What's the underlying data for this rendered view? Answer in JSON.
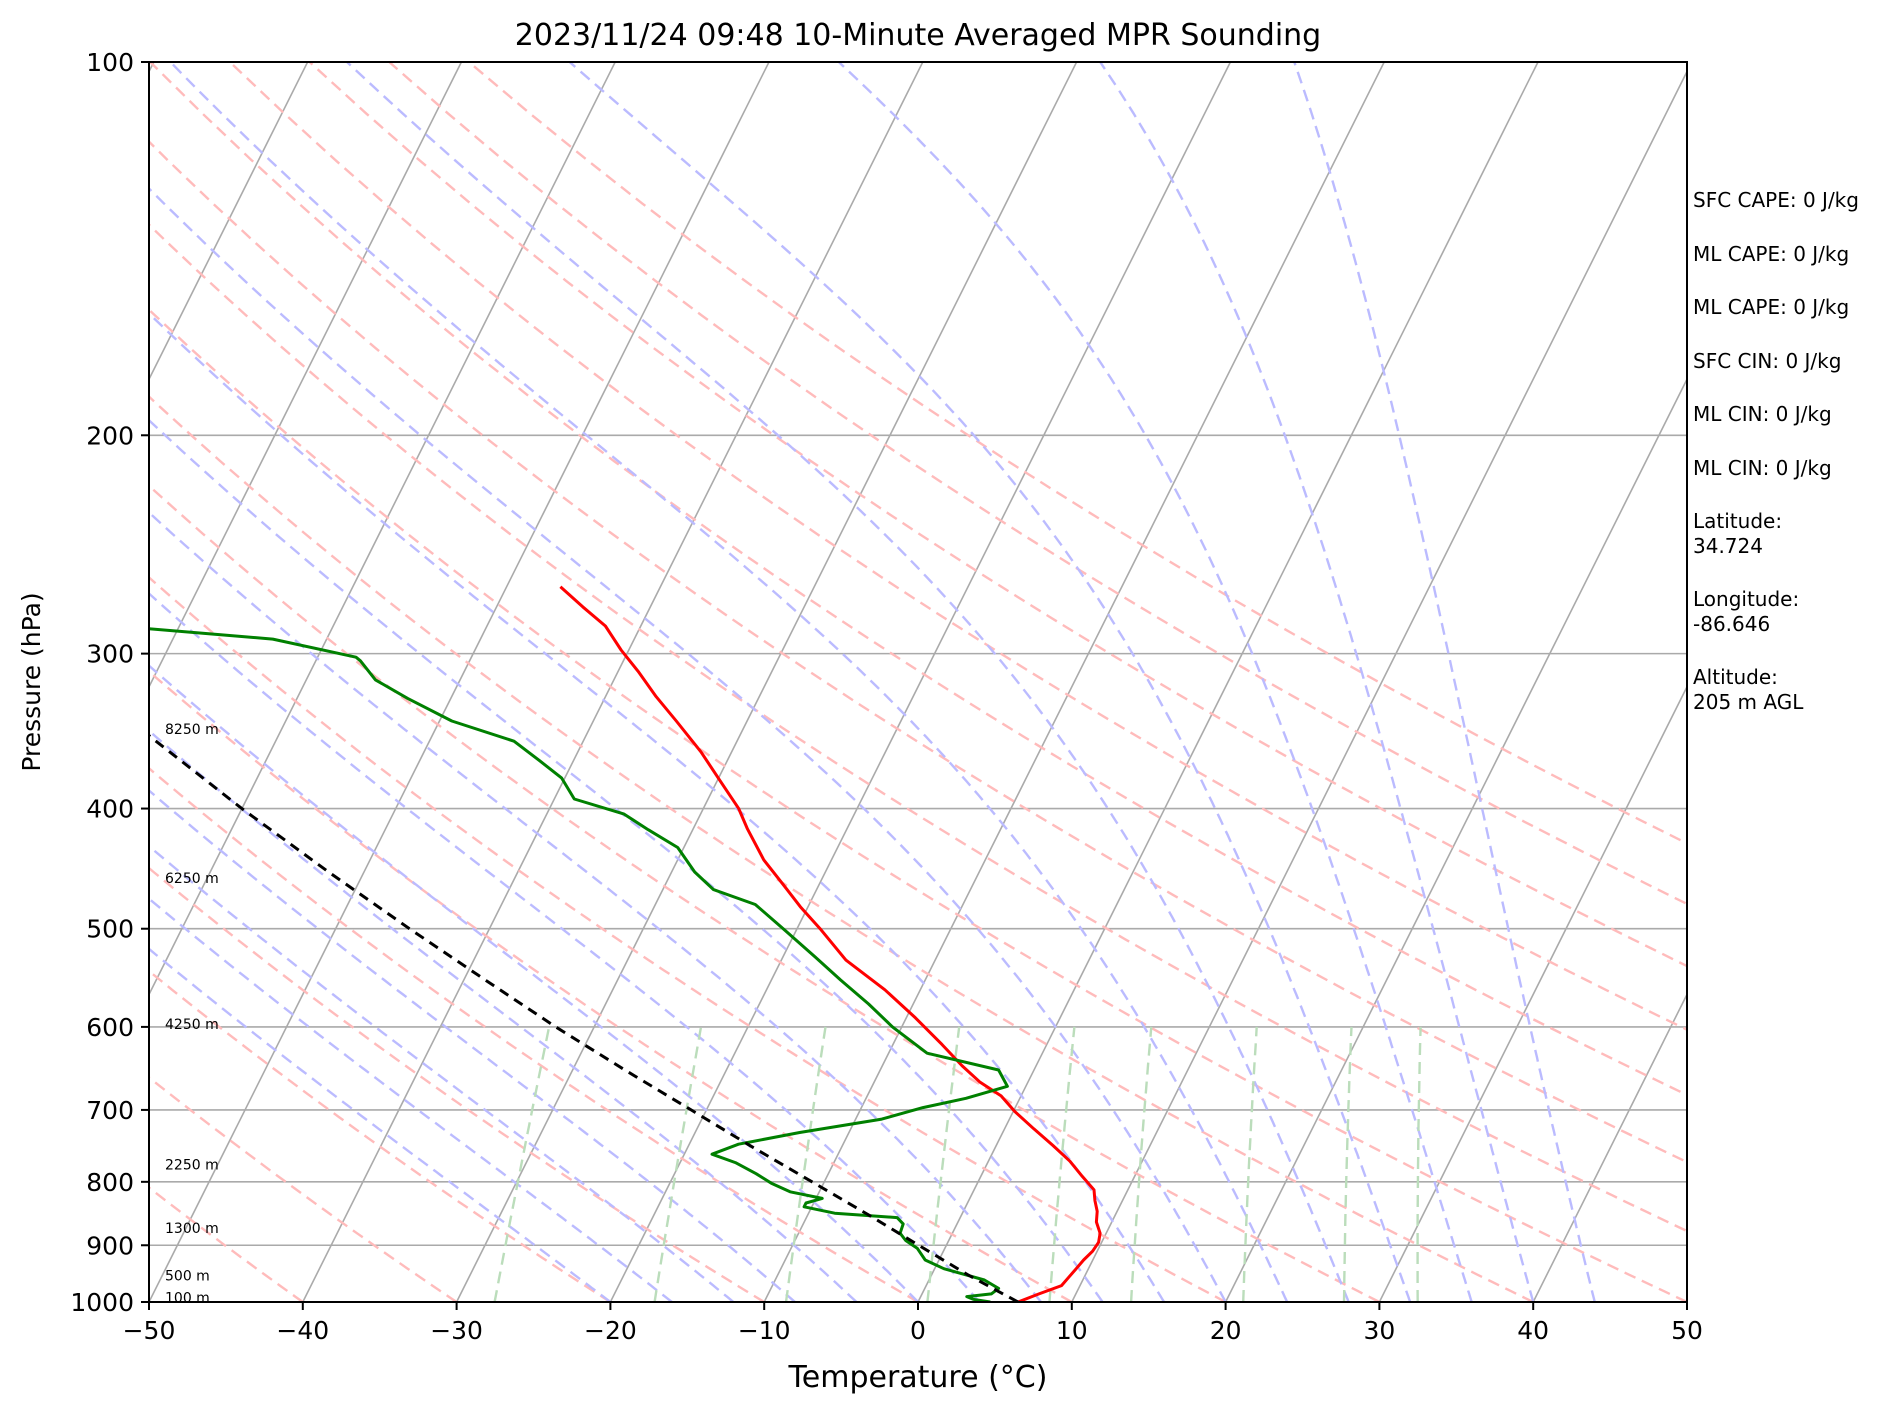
{
  "chart_data": {
    "type": "skew-t log-p diagram",
    "title": "2023/11/24 09:48 10-Minute Averaged MPR Sounding",
    "xlabel": "Temperature (°C)",
    "ylabel": "Pressure (hPa)",
    "xlim": [
      -50,
      50
    ],
    "ylim": [
      1000,
      100
    ],
    "y_scale": "log",
    "x_ticks": [
      -50,
      -40,
      -30,
      -20,
      -10,
      0,
      10,
      20,
      30,
      40,
      50
    ],
    "x_tick_labels": [
      "−50",
      "−40",
      "−30",
      "−20",
      "−10",
      "0",
      "10",
      "20",
      "30",
      "40",
      "50"
    ],
    "y_ticks": [
      100,
      200,
      300,
      400,
      500,
      600,
      700,
      800,
      900,
      1000
    ],
    "y_tick_labels": [
      "100",
      "200",
      "300",
      "400",
      "500",
      "600",
      "700",
      "800",
      "900",
      "1000"
    ],
    "isobar_grid": true,
    "skewed_isotherms": true,
    "dry_adiabats": true,
    "moist_adiabats": true,
    "mixing_ratio_lines": true,
    "height_labels": [
      {
        "pressure": 345,
        "label": "8250 m"
      },
      {
        "pressure": 455,
        "label": "6250 m"
      },
      {
        "pressure": 597,
        "label": "4250 m"
      },
      {
        "pressure": 775,
        "label": "2250 m"
      },
      {
        "pressure": 872,
        "label": "1300 m"
      },
      {
        "pressure": 952,
        "label": "500 m"
      },
      {
        "pressure": 992,
        "label": "100 m"
      }
    ],
    "series": [
      {
        "name": "temperature",
        "color": "#ff0000",
        "points": [
          {
            "p": 1000,
            "t": 6.5
          },
          {
            "p": 985,
            "t": 7.6
          },
          {
            "p": 970,
            "t": 8.8
          },
          {
            "p": 955,
            "t": 9.0
          },
          {
            "p": 940,
            "t": 9.2
          },
          {
            "p": 925,
            "t": 9.4
          },
          {
            "p": 910,
            "t": 9.7
          },
          {
            "p": 895,
            "t": 9.8
          },
          {
            "p": 880,
            "t": 9.6
          },
          {
            "p": 862,
            "t": 9.0
          },
          {
            "p": 845,
            "t": 8.7
          },
          {
            "p": 828,
            "t": 8.2
          },
          {
            "p": 812,
            "t": 7.8
          },
          {
            "p": 792,
            "t": 6.6
          },
          {
            "p": 770,
            "t": 5.3
          },
          {
            "p": 748,
            "t": 3.7
          },
          {
            "p": 725,
            "t": 1.9
          },
          {
            "p": 702,
            "t": 0.1
          },
          {
            "p": 682,
            "t": -1.3
          },
          {
            "p": 665,
            "t": -3.1
          },
          {
            "p": 645,
            "t": -4.8
          },
          {
            "p": 620,
            "t": -6.8
          },
          {
            "p": 590,
            "t": -9.4
          },
          {
            "p": 560,
            "t": -12.3
          },
          {
            "p": 530,
            "t": -15.8
          },
          {
            "p": 500,
            "t": -18.5
          },
          {
            "p": 480,
            "t": -20.5
          },
          {
            "p": 460,
            "t": -22.4
          },
          {
            "p": 440,
            "t": -24.4
          },
          {
            "p": 415,
            "t": -26.5
          },
          {
            "p": 400,
            "t": -27.7
          },
          {
            "p": 380,
            "t": -29.8
          },
          {
            "p": 360,
            "t": -32.0
          },
          {
            "p": 340,
            "t": -34.6
          },
          {
            "p": 325,
            "t": -36.7
          },
          {
            "p": 310,
            "t": -38.7
          },
          {
            "p": 298,
            "t": -40.5
          },
          {
            "p": 285,
            "t": -42.3
          },
          {
            "p": 275,
            "t": -44.4
          },
          {
            "p": 265,
            "t": -46.5
          }
        ]
      },
      {
        "name": "dewpoint",
        "color": "#008000",
        "points": [
          {
            "p": 1000,
            "t": 4.7
          },
          {
            "p": 995,
            "t": 3.5
          },
          {
            "p": 990,
            "t": 3.0
          },
          {
            "p": 985,
            "t": 4.5
          },
          {
            "p": 975,
            "t": 4.8
          },
          {
            "p": 960,
            "t": 3.6
          },
          {
            "p": 940,
            "t": 0.6
          },
          {
            "p": 925,
            "t": -0.9
          },
          {
            "p": 905,
            "t": -1.8
          },
          {
            "p": 892,
            "t": -2.8
          },
          {
            "p": 880,
            "t": -3.4
          },
          {
            "p": 865,
            "t": -3.5
          },
          {
            "p": 855,
            "t": -4.1
          },
          {
            "p": 848,
            "t": -8.3
          },
          {
            "p": 838,
            "t": -10.5
          },
          {
            "p": 832,
            "t": -10.5
          },
          {
            "p": 825,
            "t": -9.6
          },
          {
            "p": 815,
            "t": -11.9
          },
          {
            "p": 802,
            "t": -13.4
          },
          {
            "p": 788,
            "t": -14.7
          },
          {
            "p": 772,
            "t": -16.4
          },
          {
            "p": 760,
            "t": -18.2
          },
          {
            "p": 746,
            "t": -16.8
          },
          {
            "p": 730,
            "t": -13.2
          },
          {
            "p": 712,
            "t": -8.3
          },
          {
            "p": 697,
            "t": -6.0
          },
          {
            "p": 685,
            "t": -3.5
          },
          {
            "p": 670,
            "t": -1.2
          },
          {
            "p": 650,
            "t": -2.3
          },
          {
            "p": 630,
            "t": -7.5
          },
          {
            "p": 600,
            "t": -10.6
          },
          {
            "p": 575,
            "t": -12.9
          },
          {
            "p": 550,
            "t": -15.5
          },
          {
            "p": 527,
            "t": -17.9
          },
          {
            "p": 500,
            "t": -20.9
          },
          {
            "p": 478,
            "t": -23.5
          },
          {
            "p": 465,
            "t": -26.7
          },
          {
            "p": 450,
            "t": -28.5
          },
          {
            "p": 430,
            "t": -30.4
          },
          {
            "p": 416,
            "t": -32.9
          },
          {
            "p": 404,
            "t": -35.0
          },
          {
            "p": 393,
            "t": -38.7
          },
          {
            "p": 378,
            "t": -40.2
          },
          {
            "p": 366,
            "t": -42.2
          },
          {
            "p": 353,
            "t": -44.5
          },
          {
            "p": 340,
            "t": -49.2
          },
          {
            "p": 326,
            "t": -52.8
          },
          {
            "p": 315,
            "t": -55.5
          },
          {
            "p": 304,
            "t": -57.1
          },
          {
            "p": 302,
            "t": -57.5
          },
          {
            "p": 292,
            "t": -63.5
          },
          {
            "p": 286,
            "t": -72.6
          },
          {
            "p": 280,
            "t": -81.0
          }
        ]
      },
      {
        "name": "parcel",
        "color": "#000000",
        "style": "dashed",
        "points": [
          {
            "p": 1000,
            "t": 6.5
          },
          {
            "p": 970,
            "t": 4.0
          },
          {
            "p": 950,
            "t": 2.3
          },
          {
            "p": 900,
            "t": -1.8
          },
          {
            "p": 850,
            "t": -6.1
          },
          {
            "p": 800,
            "t": -10.8
          },
          {
            "p": 750,
            "t": -15.8
          },
          {
            "p": 700,
            "t": -21.0
          },
          {
            "p": 650,
            "t": -26.6
          },
          {
            "p": 600,
            "t": -32.5
          },
          {
            "p": 550,
            "t": -38.6
          },
          {
            "p": 500,
            "t": -45.2
          },
          {
            "p": 450,
            "t": -52.3
          },
          {
            "p": 400,
            "t": -60.0
          },
          {
            "p": 350,
            "t": -68.3
          },
          {
            "p": 300,
            "t": -77.6
          },
          {
            "p": 265,
            "t": -84.6
          }
        ]
      }
    ]
  },
  "stats": {
    "sfc_cape": "SFC CAPE: 0 J/kg",
    "ml_cape_1": "ML CAPE: 0 J/kg",
    "ml_cape_2": "ML CAPE: 0 J/kg",
    "sfc_cin": "SFC CIN: 0 J/kg",
    "ml_cin_1": "ML CIN: 0 J/kg",
    "ml_cin_2": "ML CIN: 0 J/kg",
    "latitude_label": "Latitude:",
    "latitude_value": "34.724",
    "longitude_label": "Longitude:",
    "longitude_value": "-86.646",
    "altitude_label": "Altitude:",
    "altitude_value": "205 m AGL"
  },
  "colors": {
    "isotherm": "#aaaaaa",
    "isobar": "#aaaaaa",
    "dry_adiabat": "#ffbbbb",
    "moist_adiabat": "#bbbbff",
    "mixing_ratio": "#bbddbb",
    "temperature": "#ff0000",
    "dewpoint": "#008000",
    "parcel": "#000000"
  }
}
